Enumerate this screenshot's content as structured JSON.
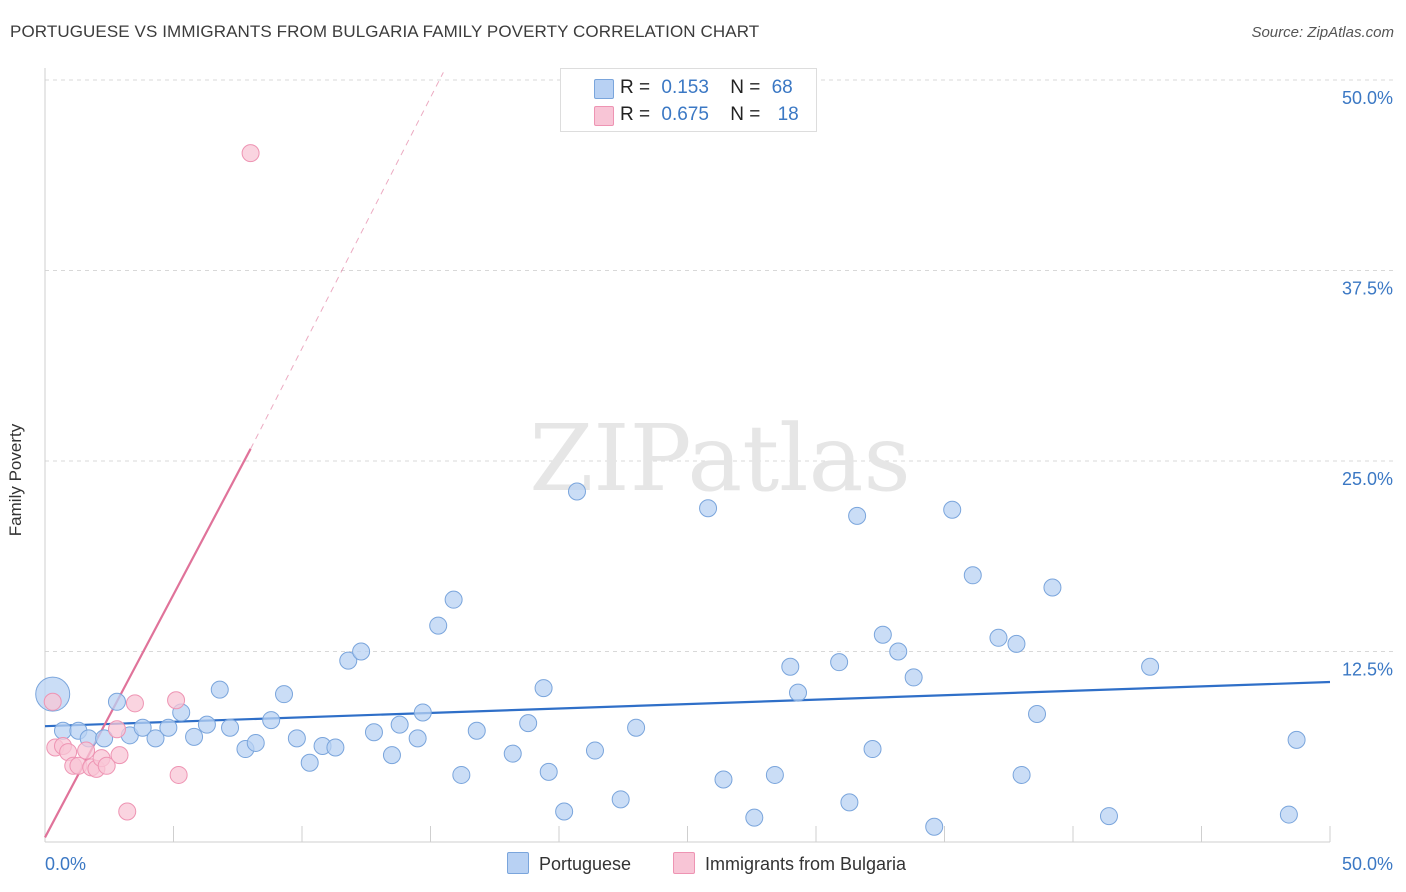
{
  "header": {
    "title": "PORTUGUESE VS IMMIGRANTS FROM BULGARIA FAMILY POVERTY CORRELATION CHART",
    "source": "Source: ZipAtlas.com"
  },
  "legend": {
    "rows": [
      {
        "r_label": "R =",
        "r_value": "0.153",
        "n_label": "N =",
        "n_value": "68"
      },
      {
        "r_label": "R =",
        "r_value": "0.675",
        "n_label": "N =",
        "n_value": "18"
      }
    ]
  },
  "bottom_legend": [
    "Portuguese",
    "Immigrants from Bulgaria"
  ],
  "watermark": "ZIPatlas",
  "colors": {
    "blue_fill": "#b8d1f3",
    "blue_stroke": "#7aa5dc",
    "blue_line": "#2f6fc8",
    "pink_fill": "#f8c5d6",
    "pink_stroke": "#ee94b3",
    "pink_line": "#e0739a",
    "grid": "#d8d8d8",
    "tick_label": "#3b78c4"
  },
  "chart_data": {
    "type": "scatter",
    "title": "PORTUGUESE VS IMMIGRANTS FROM BULGARIA FAMILY POVERTY CORRELATION CHART",
    "xlabel": "",
    "ylabel": "Family Poverty",
    "xlim": [
      0,
      50
    ],
    "ylim": [
      0,
      50
    ],
    "x_tick_labels": [
      "0.0%",
      "50.0%"
    ],
    "y_ticks": [
      12.5,
      25.0,
      37.5,
      50.0
    ],
    "y_tick_labels": [
      "12.5%",
      "25.0%",
      "37.5%",
      "50.0%"
    ],
    "series": [
      {
        "name": "Portuguese",
        "r": 0.153,
        "n": 68,
        "trend": {
          "x": [
            0,
            50
          ],
          "y": [
            7.6,
            10.5
          ],
          "style": "solid"
        },
        "points": [
          {
            "x": 0.3,
            "y": 9.7,
            "size": "large"
          },
          {
            "x": 0.7,
            "y": 7.3
          },
          {
            "x": 1.3,
            "y": 7.3
          },
          {
            "x": 1.7,
            "y": 6.8
          },
          {
            "x": 2.3,
            "y": 6.8
          },
          {
            "x": 2.8,
            "y": 9.2
          },
          {
            "x": 3.3,
            "y": 7.0
          },
          {
            "x": 3.8,
            "y": 7.5
          },
          {
            "x": 4.3,
            "y": 6.8
          },
          {
            "x": 4.8,
            "y": 7.5
          },
          {
            "x": 5.3,
            "y": 8.5
          },
          {
            "x": 5.8,
            "y": 6.9
          },
          {
            "x": 6.3,
            "y": 7.7
          },
          {
            "x": 6.8,
            "y": 10.0
          },
          {
            "x": 7.2,
            "y": 7.5
          },
          {
            "x": 7.8,
            "y": 6.1
          },
          {
            "x": 8.2,
            "y": 6.5
          },
          {
            "x": 8.8,
            "y": 8.0
          },
          {
            "x": 9.3,
            "y": 9.7
          },
          {
            "x": 9.8,
            "y": 6.8
          },
          {
            "x": 10.3,
            "y": 5.2
          },
          {
            "x": 10.8,
            "y": 6.3
          },
          {
            "x": 11.3,
            "y": 6.2
          },
          {
            "x": 11.8,
            "y": 11.9
          },
          {
            "x": 12.3,
            "y": 12.5
          },
          {
            "x": 12.8,
            "y": 7.2
          },
          {
            "x": 13.5,
            "y": 5.7
          },
          {
            "x": 13.8,
            "y": 7.7
          },
          {
            "x": 14.5,
            "y": 6.8
          },
          {
            "x": 14.7,
            "y": 8.5
          },
          {
            "x": 15.3,
            "y": 14.2
          },
          {
            "x": 15.9,
            "y": 15.9
          },
          {
            "x": 16.2,
            "y": 4.4
          },
          {
            "x": 16.8,
            "y": 7.3
          },
          {
            "x": 18.2,
            "y": 5.8
          },
          {
            "x": 18.8,
            "y": 7.8
          },
          {
            "x": 19.4,
            "y": 10.1
          },
          {
            "x": 19.6,
            "y": 4.6
          },
          {
            "x": 20.2,
            "y": 2.0
          },
          {
            "x": 20.7,
            "y": 23.0
          },
          {
            "x": 21.4,
            "y": 6.0
          },
          {
            "x": 22.4,
            "y": 2.8
          },
          {
            "x": 23.0,
            "y": 7.5
          },
          {
            "x": 25.8,
            "y": 21.9
          },
          {
            "x": 26.4,
            "y": 4.1
          },
          {
            "x": 27.6,
            "y": 1.6
          },
          {
            "x": 28.4,
            "y": 4.4
          },
          {
            "x": 29.0,
            "y": 11.5
          },
          {
            "x": 29.3,
            "y": 9.8
          },
          {
            "x": 30.9,
            "y": 11.8
          },
          {
            "x": 31.3,
            "y": 2.6
          },
          {
            "x": 31.6,
            "y": 21.4
          },
          {
            "x": 32.2,
            "y": 6.1
          },
          {
            "x": 32.6,
            "y": 13.6
          },
          {
            "x": 33.2,
            "y": 12.5
          },
          {
            "x": 33.8,
            "y": 10.8
          },
          {
            "x": 34.6,
            "y": 1.0
          },
          {
            "x": 35.3,
            "y": 21.8
          },
          {
            "x": 36.1,
            "y": 17.5
          },
          {
            "x": 37.1,
            "y": 13.4
          },
          {
            "x": 37.8,
            "y": 13.0
          },
          {
            "x": 38.0,
            "y": 4.4
          },
          {
            "x": 38.6,
            "y": 8.4
          },
          {
            "x": 39.2,
            "y": 16.7
          },
          {
            "x": 41.4,
            "y": 1.7
          },
          {
            "x": 43.0,
            "y": 11.5
          },
          {
            "x": 48.7,
            "y": 6.7
          },
          {
            "x": 48.4,
            "y": 1.8
          }
        ]
      },
      {
        "name": "Immigrants from Bulgaria",
        "r": 0.675,
        "n": 18,
        "trend": {
          "x": [
            0,
            8.0
          ],
          "y": [
            0.3,
            25.8
          ],
          "style": "solid",
          "extension": {
            "x": [
              8.0,
              15.5
            ],
            "y": [
              25.8,
              50.5
            ],
            "style": "dashed"
          }
        },
        "points": [
          {
            "x": 0.3,
            "y": 9.2
          },
          {
            "x": 0.4,
            "y": 6.2
          },
          {
            "x": 0.7,
            "y": 6.3
          },
          {
            "x": 0.9,
            "y": 5.9
          },
          {
            "x": 1.1,
            "y": 5.0
          },
          {
            "x": 1.3,
            "y": 5.0
          },
          {
            "x": 1.6,
            "y": 6.0
          },
          {
            "x": 1.8,
            "y": 4.9
          },
          {
            "x": 2.0,
            "y": 4.8
          },
          {
            "x": 2.2,
            "y": 5.5
          },
          {
            "x": 2.4,
            "y": 5.0
          },
          {
            "x": 2.8,
            "y": 7.4
          },
          {
            "x": 2.9,
            "y": 5.7
          },
          {
            "x": 3.2,
            "y": 2.0
          },
          {
            "x": 3.5,
            "y": 9.1
          },
          {
            "x": 5.1,
            "y": 9.3
          },
          {
            "x": 5.2,
            "y": 4.4
          },
          {
            "x": 8.0,
            "y": 45.2
          }
        ]
      }
    ]
  }
}
